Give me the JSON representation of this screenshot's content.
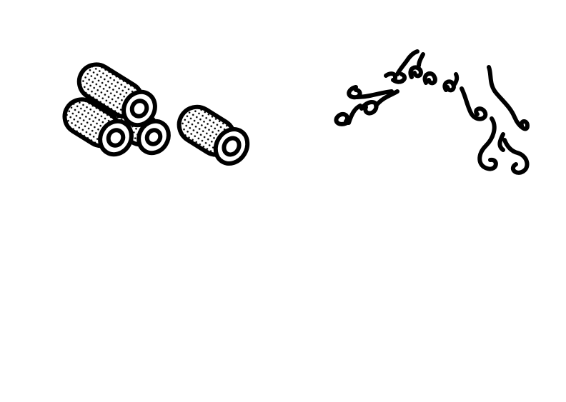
{
  "page": {
    "background": "#ffffff"
  },
  "illustrations": [
    {
      "name": "rolled-tube-cluster",
      "icon": "rolled-tubes-icon",
      "count": 3,
      "fill_pattern": "dots"
    },
    {
      "name": "single-rolled-tube",
      "icon": "rolled-tube-icon",
      "count": 1,
      "fill_pattern": "dots"
    },
    {
      "name": "curly-swirl-arch",
      "icon": "swirl-ornament-icon"
    }
  ],
  "colors": {
    "ink": "#000000",
    "paper": "#ffffff",
    "dots": "#000000"
  }
}
